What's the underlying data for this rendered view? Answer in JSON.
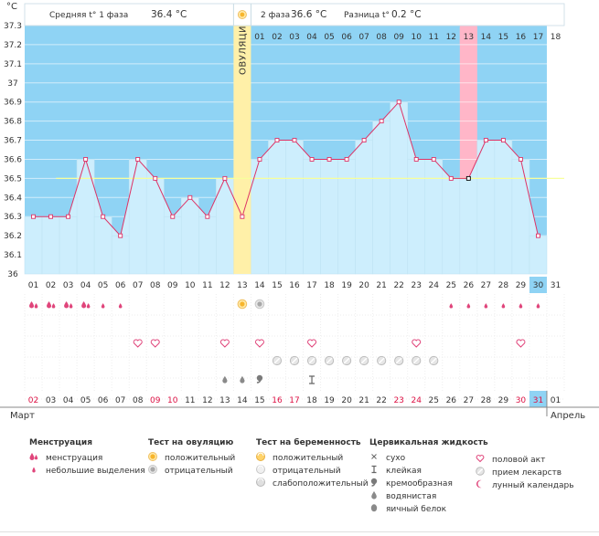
{
  "chart_data": {
    "type": "line",
    "title": "",
    "unit_label": "°C",
    "ylim": [
      36.0,
      37.3
    ],
    "y_ticks": [
      "37.3",
      "37.2",
      "37.1",
      "37",
      "36.9",
      "36.8",
      "36.7",
      "36.6",
      "36.5",
      "36.4",
      "36.3",
      "36.2",
      "36.1",
      "36"
    ],
    "cycle_days": [
      "01",
      "02",
      "03",
      "04",
      "05",
      "06",
      "07",
      "08",
      "09",
      "10",
      "11",
      "12",
      "13",
      "14",
      "15",
      "16",
      "17",
      "18",
      "19",
      "20",
      "21",
      "22",
      "23",
      "24",
      "25",
      "26",
      "27",
      "28",
      "29",
      "30",
      "31"
    ],
    "top_days": [
      "01",
      "02",
      "03",
      "04",
      "05",
      "06",
      "07",
      "08",
      "09",
      "10",
      "11",
      "12",
      "13",
      "14",
      "15",
      "16",
      "17",
      "18"
    ],
    "temperatures": [
      36.3,
      36.3,
      36.3,
      36.6,
      36.3,
      36.2,
      36.6,
      36.5,
      36.3,
      36.4,
      36.3,
      36.5,
      36.3,
      36.6,
      36.7,
      36.7,
      36.6,
      36.6,
      36.6,
      36.7,
      36.8,
      36.9,
      36.6,
      36.6,
      36.5,
      36.5,
      36.7,
      36.7,
      36.6,
      36.2,
      null
    ],
    "coverline": 36.5,
    "ovulation_day": 13,
    "ovulation_label": "ОВУЛЯЦИЯ",
    "highlight_top_day": 13,
    "current_day": 30,
    "current_date": "31",
    "summary": {
      "phase1_label": "Средняя t° 1 фаза",
      "phase1_value": "36.4 °C",
      "phase2_label": "2 фаза",
      "phase2_value": "36.6 °C",
      "diff_label": "Разница t°",
      "diff_value": "0.2 °C"
    },
    "dates": [
      "02",
      "03",
      "04",
      "05",
      "06",
      "07",
      "08",
      "09",
      "10",
      "11",
      "12",
      "13",
      "14",
      "15",
      "16",
      "17",
      "18",
      "19",
      "20",
      "21",
      "22",
      "23",
      "24",
      "25",
      "26",
      "27",
      "28",
      "29",
      "30",
      "31",
      "01"
    ],
    "weekend_dates": [
      1,
      8,
      9,
      15,
      16,
      22,
      23,
      29,
      30
    ],
    "month_start": "Март",
    "month_end": "Апрель",
    "markers": {
      "menstruation": [
        1,
        2,
        3,
        4
      ],
      "light_spotting": [
        5,
        6,
        25,
        26,
        27,
        28,
        29,
        30
      ],
      "ovulation_positive": [
        13
      ],
      "ovulation_negative": [
        14
      ],
      "intercourse": [
        7,
        8,
        12,
        14,
        17,
        23,
        29
      ],
      "medication": [
        15,
        16,
        17,
        18,
        19,
        20,
        21,
        22,
        23,
        24
      ],
      "watery": [
        12,
        13
      ],
      "creamy": [
        14
      ],
      "sticky": [
        17
      ]
    }
  },
  "legend": {
    "menstruation": {
      "title": "Менструация",
      "items": [
        "менструация",
        "небольшие выделения"
      ]
    },
    "ovulation_test": {
      "title": "Тест на овуляцию",
      "items": [
        "положительный",
        "отрицательный"
      ]
    },
    "pregnancy_test": {
      "title": "Тест на беременность",
      "items": [
        "положительный",
        "отрицательный",
        "слабоположительный"
      ]
    },
    "cervical": {
      "title": "Цервикальная жидкость",
      "items": [
        "сухо",
        "клейкая",
        "кремообразная",
        "водянистая",
        "яичный белок"
      ]
    },
    "other": {
      "items": [
        "половой акт",
        "прием лекарств",
        "лунный календарь"
      ]
    }
  },
  "colors": {
    "plot_bg": "#8fd3f4",
    "area": "#cdeefd",
    "line": "#dd3366",
    "ovulation": "#fff0a8",
    "highlight": "#ffb6c8",
    "coverline": "#f7ff9c",
    "weekend": "#dd1144",
    "current": "#8fd3f4"
  }
}
